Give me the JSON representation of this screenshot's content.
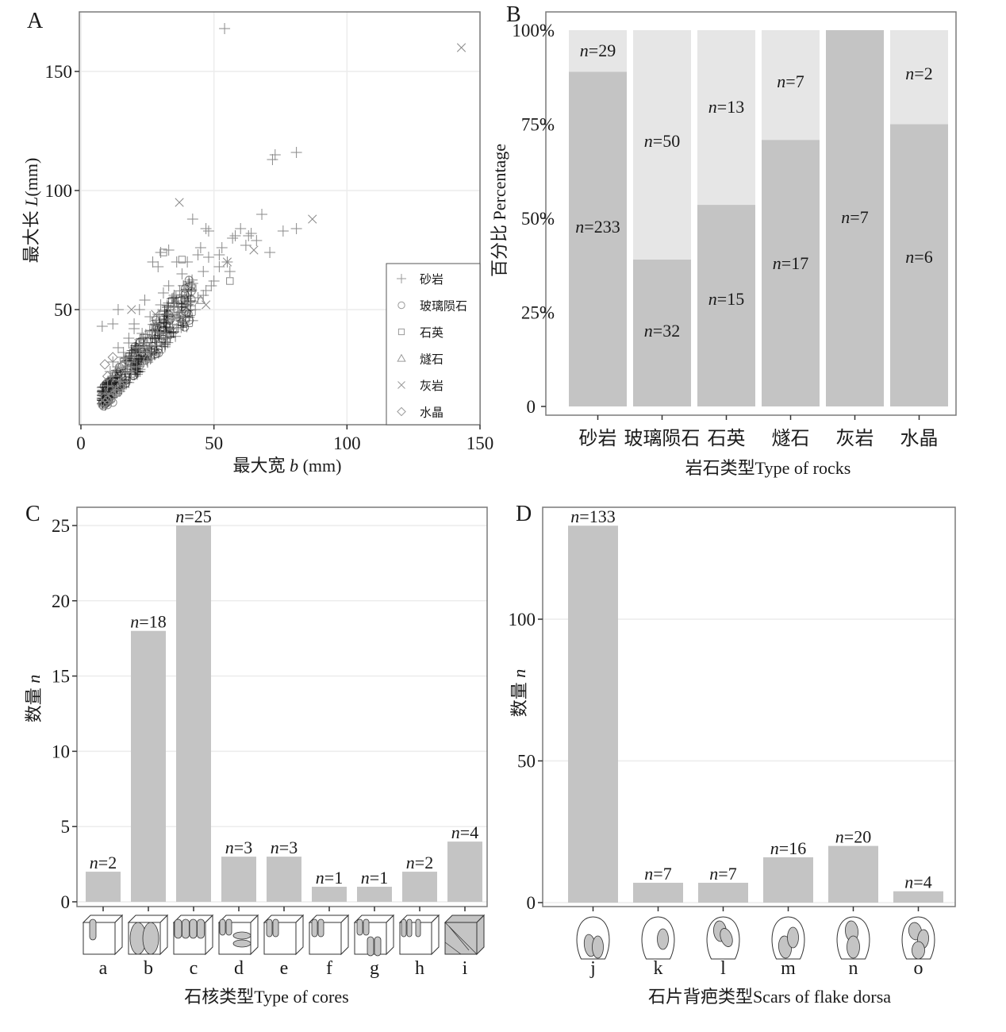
{
  "colors": {
    "bar": "#c4c4c4",
    "bar_light": "#e6e6e6",
    "grid": "#ececec",
    "frame": "#7a7a7a",
    "marker": "#555555",
    "text": "#1a1a1a"
  },
  "chart_data": [
    {
      "panel": "A",
      "type": "scatter",
      "title": "",
      "xlabel": "最大宽 b (mm)",
      "ylabel": "最大长 L(mm)",
      "xlim": [
        0,
        150
      ],
      "ylim": [
        2,
        172
      ],
      "xticks": [
        0,
        50,
        100,
        150
      ],
      "yticks": [
        50,
        100,
        150
      ],
      "grid": true,
      "legend_position": "bottom-right-inside",
      "legend": [
        {
          "label": "砂岩",
          "marker": "plus"
        },
        {
          "label": "玻璃陨石",
          "marker": "circle"
        },
        {
          "label": "石英",
          "marker": "square"
        },
        {
          "label": "燧石",
          "marker": "triangle"
        },
        {
          "label": "灰岩",
          "marker": "cross"
        },
        {
          "label": "水晶",
          "marker": "diamond"
        }
      ],
      "series": [
        {
          "name": "砂岩",
          "marker": "plus",
          "points": [
            [
              54,
              168
            ],
            [
              72,
              113
            ],
            [
              73,
              115
            ],
            [
              81,
              116
            ],
            [
              76,
              83
            ],
            [
              81,
              84
            ],
            [
              68,
              90
            ],
            [
              71,
              74
            ],
            [
              62,
              77
            ],
            [
              63,
              81
            ],
            [
              58,
              81
            ],
            [
              60,
              84
            ],
            [
              53,
              76
            ],
            [
              48,
              83
            ],
            [
              42,
              88
            ],
            [
              47,
              84
            ],
            [
              33,
              75
            ],
            [
              30,
              74
            ],
            [
              29,
              68
            ],
            [
              27,
              70
            ],
            [
              40,
              70
            ],
            [
              44,
              73
            ],
            [
              45,
              76
            ],
            [
              36,
              70
            ],
            [
              38,
              65
            ],
            [
              42,
              61
            ],
            [
              46,
              66
            ],
            [
              52,
              68
            ],
            [
              49,
              60
            ],
            [
              47,
              58
            ],
            [
              44,
              55
            ],
            [
              40,
              52
            ],
            [
              55,
              70
            ],
            [
              56,
              66
            ],
            [
              48,
              72
            ],
            [
              39,
              58
            ],
            [
              35,
              56
            ],
            [
              33,
              60
            ],
            [
              31,
              57
            ],
            [
              30,
              52
            ],
            [
              24,
              54
            ],
            [
              22,
              50
            ],
            [
              14,
              50
            ],
            [
              8,
              43
            ],
            [
              12,
              44
            ],
            [
              20,
              44
            ],
            [
              26,
              47
            ],
            [
              28,
              44
            ],
            [
              18,
              38
            ],
            [
              24,
              36
            ],
            [
              30,
              40
            ],
            [
              36,
              42
            ],
            [
              38,
              45
            ],
            [
              34,
              46
            ],
            [
              16,
              32
            ],
            [
              20,
              30
            ],
            [
              22,
              34
            ],
            [
              26,
              32
            ],
            [
              14,
              26
            ],
            [
              17,
              28
            ],
            [
              19,
              24
            ],
            [
              12,
              22
            ],
            [
              15,
              20
            ],
            [
              10,
              18
            ],
            [
              13,
              16
            ],
            [
              9,
              15
            ],
            [
              21,
              26
            ],
            [
              25,
              28
            ],
            [
              28,
              35
            ],
            [
              32,
              38
            ],
            [
              23,
              40
            ],
            [
              27,
              41
            ],
            [
              20,
              42
            ],
            [
              18,
              36
            ],
            [
              16,
              30
            ],
            [
              11,
              24
            ],
            [
              14,
              34
            ],
            [
              12,
              28
            ],
            [
              29,
              48
            ],
            [
              33,
              48
            ],
            [
              35,
              51
            ],
            [
              37,
              49
            ],
            [
              41,
              53
            ],
            [
              43,
              50
            ],
            [
              46,
              56
            ],
            [
              50,
              62
            ],
            [
              52,
              73
            ],
            [
              57,
              80
            ],
            [
              64,
              82
            ],
            [
              66,
              79
            ]
          ]
        },
        {
          "name": "玻璃陨石",
          "marker": "circle",
          "points": [
            [
              8,
              10
            ],
            [
              9,
              11
            ],
            [
              10,
              12
            ],
            [
              11,
              13
            ],
            [
              10,
              10
            ],
            [
              12,
              14
            ],
            [
              13,
              15
            ],
            [
              9,
              13
            ],
            [
              14,
              16
            ],
            [
              12,
              11
            ],
            [
              15,
              18
            ],
            [
              11,
              16
            ],
            [
              16,
              20
            ],
            [
              13,
              19
            ]
          ]
        },
        {
          "name": "石英",
          "marker": "square",
          "points": [
            [
              31,
              74
            ],
            [
              38,
              71
            ],
            [
              56,
              62
            ],
            [
              42,
              59
            ],
            [
              22,
              33
            ],
            [
              16,
              28
            ]
          ]
        },
        {
          "name": "燧石",
          "marker": "triangle",
          "points": [
            [
              45,
              54
            ],
            [
              30,
              42
            ],
            [
              25,
              30
            ],
            [
              18,
              25
            ],
            [
              40,
              48
            ]
          ]
        },
        {
          "name": "灰岩",
          "marker": "cross",
          "points": [
            [
              143,
              160
            ],
            [
              37,
              95
            ],
            [
              87,
              88
            ],
            [
              65,
              75
            ],
            [
              55,
              70
            ],
            [
              47,
              52
            ],
            [
              28,
              48
            ],
            [
              19,
              50
            ]
          ]
        },
        {
          "name": "水晶",
          "marker": "diamond",
          "points": [
            [
              9,
              27
            ],
            [
              12,
              30
            ],
            [
              10,
              22
            ],
            [
              14,
              24
            ]
          ]
        }
      ]
    },
    {
      "panel": "B",
      "type": "bar",
      "stacked": "percent",
      "title": "",
      "xlabel": "岩石类型Type of rocks",
      "ylabel": "百分比 Percentage",
      "ylim": [
        0,
        1
      ],
      "yticks": [
        "0",
        "25%",
        "50%",
        "75%",
        "100%"
      ],
      "categories": [
        "砂岩",
        "玻璃陨石",
        "石英",
        "燧石",
        "灰岩",
        "水晶"
      ],
      "series": [
        {
          "name": "lower",
          "color_key": "bar",
          "values": [
            233,
            32,
            15,
            17,
            7,
            6
          ]
        },
        {
          "name": "upper",
          "color_key": "bar_light",
          "values": [
            29,
            50,
            13,
            7,
            0,
            2
          ]
        }
      ],
      "data_labels": {
        "lower": [
          "n=233",
          "n=32",
          "n=15",
          "n=17",
          "n=7",
          "n=6"
        ],
        "upper": [
          "n=29",
          "n=50",
          "n=13",
          "n=7",
          "",
          "n=2"
        ]
      },
      "grid": false
    },
    {
      "panel": "C",
      "type": "bar",
      "title": "",
      "xlabel": "石核类型Type of cores",
      "ylabel": "数量 n",
      "ylim": [
        0,
        26
      ],
      "yticks": [
        0,
        5,
        10,
        15,
        20,
        25
      ],
      "categories": [
        "a",
        "b",
        "c",
        "d",
        "e",
        "f",
        "g",
        "h",
        "i"
      ],
      "values": [
        2,
        18,
        25,
        3,
        3,
        1,
        1,
        2,
        4
      ],
      "data_labels": [
        "n=2",
        "n=18",
        "n=25",
        "n=3",
        "n=3",
        "n=1",
        "n=1",
        "n=2",
        "n=4"
      ],
      "category_icons": [
        "core-type-a-icon",
        "core-type-b-icon",
        "core-type-c-icon",
        "core-type-d-icon",
        "core-type-e-icon",
        "core-type-f-icon",
        "core-type-g-icon",
        "core-type-h-icon",
        "core-type-i-icon"
      ],
      "grid": true
    },
    {
      "panel": "D",
      "type": "bar",
      "title": "",
      "xlabel": "石片背疤类型Scars of flake dorsa",
      "ylabel": "数量 n",
      "ylim": [
        0,
        135
      ],
      "yticks": [
        0,
        50,
        100
      ],
      "categories": [
        "j",
        "k",
        "l",
        "m",
        "n",
        "o"
      ],
      "values": [
        133,
        7,
        7,
        16,
        20,
        4
      ],
      "data_labels": [
        "n=133",
        "n=7",
        "n=7",
        "n=16",
        "n=20",
        "n=4"
      ],
      "category_icons": [
        "flake-scar-j-icon",
        "flake-scar-k-icon",
        "flake-scar-l-icon",
        "flake-scar-m-icon",
        "flake-scar-n-icon",
        "flake-scar-o-icon"
      ],
      "grid": true
    }
  ]
}
